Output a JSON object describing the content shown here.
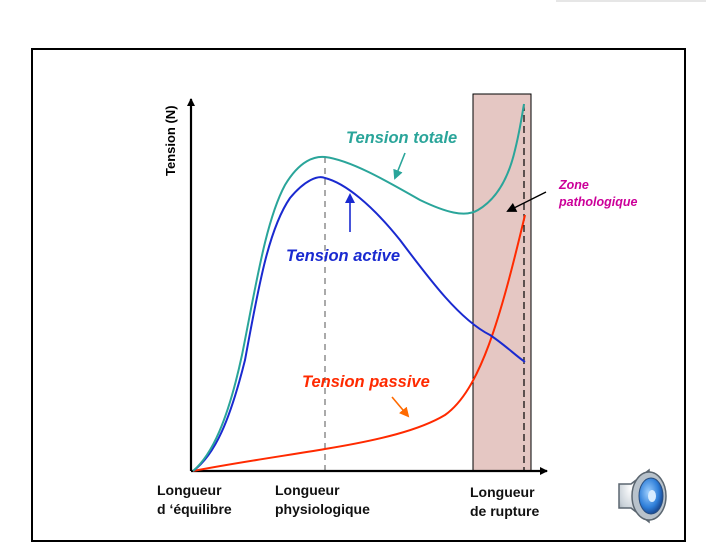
{
  "diagram": {
    "y_axis_title": "Tension (N)",
    "x_axis_labels": [
      {
        "line1": "Longueur",
        "line2": "d ‘équilibre"
      },
      {
        "line1": "Longueur",
        "line2": "physiologique"
      },
      {
        "line1": "Longueur",
        "line2": "de rupture"
      }
    ],
    "curves": {
      "totale": {
        "label": "Tension totale",
        "color": "#2aa59a"
      },
      "active": {
        "label": "Tension active",
        "color": "#1a2ad0"
      },
      "passive": {
        "label": "Tension passive",
        "color": "#ff2a00"
      }
    },
    "zone": {
      "line1": "Zone",
      "line2": "pathologique",
      "label_color": "#cc0099",
      "fill_color": "#e5c7c3"
    },
    "speaker_icon": "speaker-icon"
  }
}
